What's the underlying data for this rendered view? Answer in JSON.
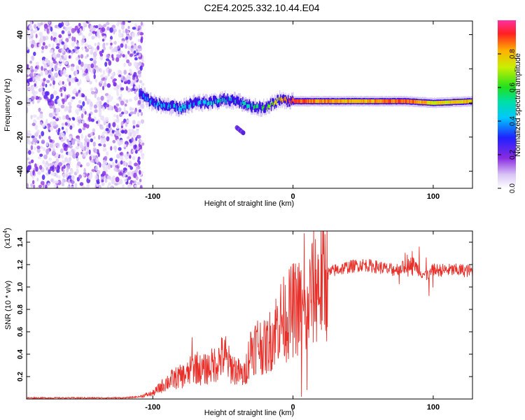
{
  "title": "C2E4.2025.332.10.44.E04",
  "chart_data": [
    {
      "type": "heatmap",
      "xlabel": "Height of straight line (km)",
      "ylabel": "Frequency (Hz)",
      "xlim": [
        -190,
        128
      ],
      "ylim": [
        -50,
        48
      ],
      "xticks": [
        -100,
        0,
        100
      ],
      "yticks": [
        -40,
        -20,
        0,
        20,
        40
      ],
      "colorbar": {
        "label": "Normalized spectral amplitude",
        "range": [
          0,
          1
        ],
        "ticks": [
          0.0,
          0.2,
          0.4,
          0.6,
          0.8
        ]
      },
      "ridge": {
        "description_points_x": [
          -110,
          -100,
          -90,
          -80,
          -70,
          -60,
          -50,
          -40,
          -30,
          -20,
          -10,
          0,
          20,
          50,
          80,
          100,
          128
        ],
        "frequency_hz": [
          6,
          0,
          -2,
          -3,
          0,
          0,
          2,
          1,
          -2,
          -3,
          2,
          1,
          1,
          1,
          1,
          0,
          1
        ],
        "amplitude": [
          0.3,
          0.45,
          0.45,
          0.45,
          0.45,
          0.45,
          0.5,
          0.5,
          0.55,
          0.6,
          0.8,
          0.9,
          0.85,
          0.8,
          0.9,
          0.75,
          0.8
        ]
      },
      "secondary_blob": {
        "x": -38,
        "frequency_hz": -16
      },
      "noise_region_x": [
        -190,
        -107
      ]
    },
    {
      "type": "line",
      "xlabel": "Height of straight line (km)",
      "ylabel": "SNR (10 * v/v)",
      "y_multiplier": "(x10",
      "y_multiplier_exp": "4",
      "xlim": [
        -190,
        128
      ],
      "ylim": [
        0,
        1.5
      ],
      "xticks": [
        -100,
        0,
        100
      ],
      "yticks": [
        0.2,
        0.4,
        0.6,
        0.8,
        1.0,
        1.2,
        1.4
      ],
      "ytick_labels": [
        "0.2",
        "0.4",
        "0.6",
        "0.8",
        "1.0",
        "1.2",
        "1.4"
      ],
      "color": "#e8302a",
      "series": [
        {
          "name": "SNR",
          "x": [
            -190,
            -120,
            -110,
            -100,
            -95,
            -90,
            -85,
            -80,
            -75,
            -70,
            -65,
            -60,
            -55,
            -50,
            -45,
            -40,
            -35,
            -30,
            -25,
            -20,
            -15,
            -10,
            -5,
            0,
            5,
            8,
            10,
            12,
            15,
            20,
            25,
            30,
            40,
            50,
            60,
            70,
            80,
            85,
            90,
            95,
            100,
            110,
            120,
            128
          ],
          "y": [
            0.01,
            0.01,
            0.02,
            0.05,
            0.1,
            0.15,
            0.18,
            0.2,
            0.22,
            0.3,
            0.25,
            0.28,
            0.32,
            0.38,
            0.3,
            0.25,
            0.2,
            0.45,
            0.5,
            0.45,
            0.55,
            0.7,
            0.72,
            0.8,
            0.82,
            0.7,
            0.75,
            0.9,
            1.0,
            1.05,
            1.12,
            1.15,
            1.18,
            1.2,
            1.18,
            1.15,
            1.18,
            1.22,
            1.15,
            1.1,
            1.15,
            1.15,
            1.15,
            1.14
          ],
          "spikes": [
            {
              "x": 8,
              "y": 1.48
            },
            {
              "x": 10,
              "y": 0.08
            },
            {
              "x": -72,
              "y": 0.55
            },
            {
              "x": -48,
              "y": 0.56
            },
            {
              "x": 6,
              "y": 0.02
            },
            {
              "x": 90,
              "y": 1.36
            },
            {
              "x": 97,
              "y": 0.92
            },
            {
              "x": 85,
              "y": 1.32
            }
          ]
        }
      ]
    }
  ]
}
